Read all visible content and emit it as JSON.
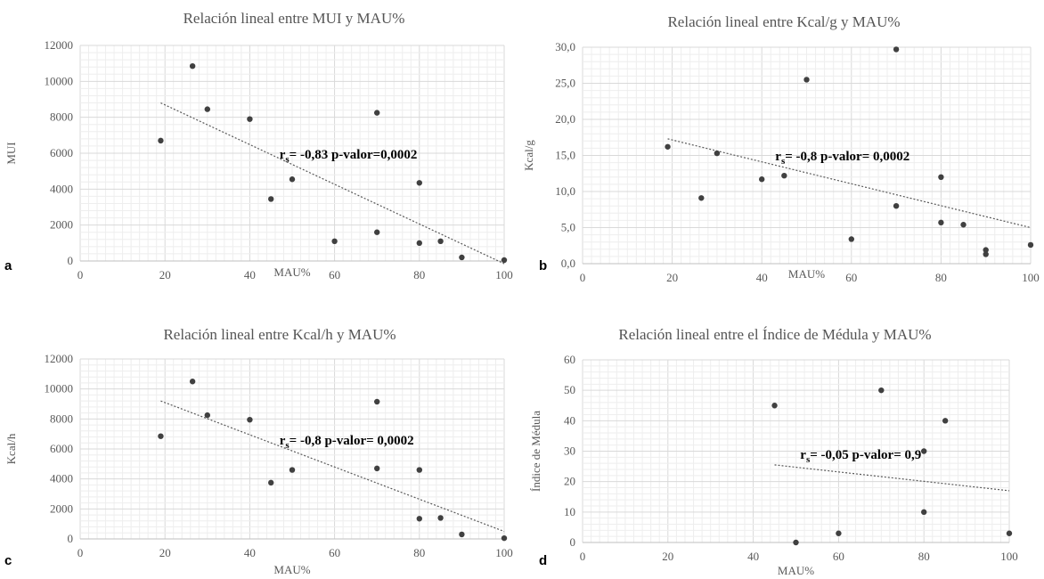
{
  "chart_data": [
    {
      "type": "scatter",
      "panel_label": "a",
      "title": "Relación lineal entre MUI y MAU%",
      "xlabel": "MAU%",
      "ylabel": "MUI",
      "xlim": [
        0,
        100
      ],
      "ylim": [
        0,
        12000
      ],
      "xticks": [
        0,
        20,
        40,
        60,
        80,
        100
      ],
      "yticks": [
        0,
        2000,
        4000,
        6000,
        8000,
        10000,
        12000
      ],
      "ytick_labels": [
        "0",
        "2000",
        "4000",
        "6000",
        "8000",
        "10000",
        "12000"
      ],
      "grid": true,
      "points": [
        {
          "x": 19,
          "y": 6700
        },
        {
          "x": 26.5,
          "y": 10850
        },
        {
          "x": 30,
          "y": 8450
        },
        {
          "x": 40,
          "y": 7900
        },
        {
          "x": 45,
          "y": 3450
        },
        {
          "x": 50,
          "y": 4550
        },
        {
          "x": 60,
          "y": 1100
        },
        {
          "x": 70,
          "y": 8250
        },
        {
          "x": 70,
          "y": 1600
        },
        {
          "x": 80,
          "y": 4350
        },
        {
          "x": 80,
          "y": 1000
        },
        {
          "x": 85,
          "y": 1100
        },
        {
          "x": 90,
          "y": 200
        },
        {
          "x": 100,
          "y": 50
        }
      ],
      "trendline": {
        "x0": 19,
        "y0": 8800,
        "x1": 100,
        "y1": -150
      },
      "annotation": {
        "r_prefix": "r",
        "r_sub": "s",
        "text": "= -0,83  p-valor=0,0002",
        "x": 47,
        "y": 5700
      }
    },
    {
      "type": "scatter",
      "panel_label": "b",
      "title": "Relación lineal entre Kcal/g y MAU%",
      "xlabel": "MAU%",
      "ylabel": "Kcal/g",
      "xlim": [
        0,
        100
      ],
      "ylim": [
        0,
        30
      ],
      "xticks": [
        0,
        20,
        40,
        60,
        80,
        100
      ],
      "yticks": [
        0,
        5,
        10,
        15,
        20,
        25,
        30
      ],
      "ytick_labels": [
        "0,0",
        "5,0",
        "10,0",
        "15,0",
        "20,0",
        "25,0",
        "30,0"
      ],
      "grid": true,
      "points": [
        {
          "x": 19,
          "y": 16.2
        },
        {
          "x": 26.5,
          "y": 9.1
        },
        {
          "x": 30,
          "y": 15.3
        },
        {
          "x": 40,
          "y": 11.7
        },
        {
          "x": 45,
          "y": 12.2
        },
        {
          "x": 50,
          "y": 25.5
        },
        {
          "x": 60,
          "y": 3.4
        },
        {
          "x": 70,
          "y": 29.7
        },
        {
          "x": 70,
          "y": 8.0
        },
        {
          "x": 80,
          "y": 12.0
        },
        {
          "x": 80,
          "y": 5.7
        },
        {
          "x": 85,
          "y": 5.4
        },
        {
          "x": 90,
          "y": 1.9
        },
        {
          "x": 90,
          "y": 1.3
        },
        {
          "x": 100,
          "y": 2.6
        }
      ],
      "trendline": {
        "x0": 19,
        "y0": 17.3,
        "x1": 100,
        "y1": 5.0
      },
      "annotation": {
        "r_prefix": "r",
        "r_sub": "s",
        "text": "= -0,8  p-valor= 0,0002",
        "x": 43,
        "y": 14.3
      }
    },
    {
      "type": "scatter",
      "panel_label": "c",
      "title": "Relación lineal entre Kcal/h y MAU%",
      "xlabel": "MAU%",
      "ylabel": "Kcal/h",
      "xlim": [
        0,
        100
      ],
      "ylim": [
        0,
        12000
      ],
      "xticks": [
        0,
        20,
        40,
        60,
        80,
        100
      ],
      "yticks": [
        0,
        2000,
        4000,
        6000,
        8000,
        10000,
        12000
      ],
      "ytick_labels": [
        "0",
        "2000",
        "4000",
        "6000",
        "8000",
        "10000",
        "12000"
      ],
      "grid": true,
      "points": [
        {
          "x": 19,
          "y": 6850
        },
        {
          "x": 26.5,
          "y": 10500
        },
        {
          "x": 30,
          "y": 8250
        },
        {
          "x": 40,
          "y": 7950
        },
        {
          "x": 45,
          "y": 3750
        },
        {
          "x": 50,
          "y": 4600
        },
        {
          "x": 70,
          "y": 9150
        },
        {
          "x": 70,
          "y": 4700
        },
        {
          "x": 80,
          "y": 4600
        },
        {
          "x": 80,
          "y": 1350
        },
        {
          "x": 85,
          "y": 1400
        },
        {
          "x": 90,
          "y": 300
        },
        {
          "x": 100,
          "y": 50
        }
      ],
      "trendline": {
        "x0": 19,
        "y0": 9200,
        "x1": 100,
        "y1": 500
      },
      "annotation": {
        "r_prefix": "r",
        "r_sub": "s",
        "text": "= -0,8  p-valor= 0,0002",
        "x": 47,
        "y": 6300
      }
    },
    {
      "type": "scatter",
      "panel_label": "d",
      "title": "Relación lineal entre el Índice de Médula y MAU%",
      "xlabel": "MAU%",
      "ylabel": "Índice de Médula",
      "xlim": [
        0,
        100
      ],
      "ylim": [
        0,
        60
      ],
      "xticks": [
        0,
        20,
        40,
        60,
        80,
        100
      ],
      "yticks": [
        0,
        10,
        20,
        30,
        40,
        50,
        60
      ],
      "ytick_labels": [
        "0",
        "10",
        "20",
        "30",
        "40",
        "50",
        "60"
      ],
      "grid": true,
      "points": [
        {
          "x": 45,
          "y": 45
        },
        {
          "x": 50,
          "y": 0
        },
        {
          "x": 60,
          "y": 3
        },
        {
          "x": 70,
          "y": 50
        },
        {
          "x": 80,
          "y": 30
        },
        {
          "x": 80,
          "y": 10
        },
        {
          "x": 85,
          "y": 40
        },
        {
          "x": 100,
          "y": 3
        }
      ],
      "trendline": {
        "x0": 45,
        "y0": 25.5,
        "x1": 100,
        "y1": 17
      },
      "annotation": {
        "r_prefix": "r",
        "r_sub": "s",
        "text": "= -0,05  p-valor= 0,9",
        "x": 51,
        "y": 27.5
      }
    }
  ]
}
